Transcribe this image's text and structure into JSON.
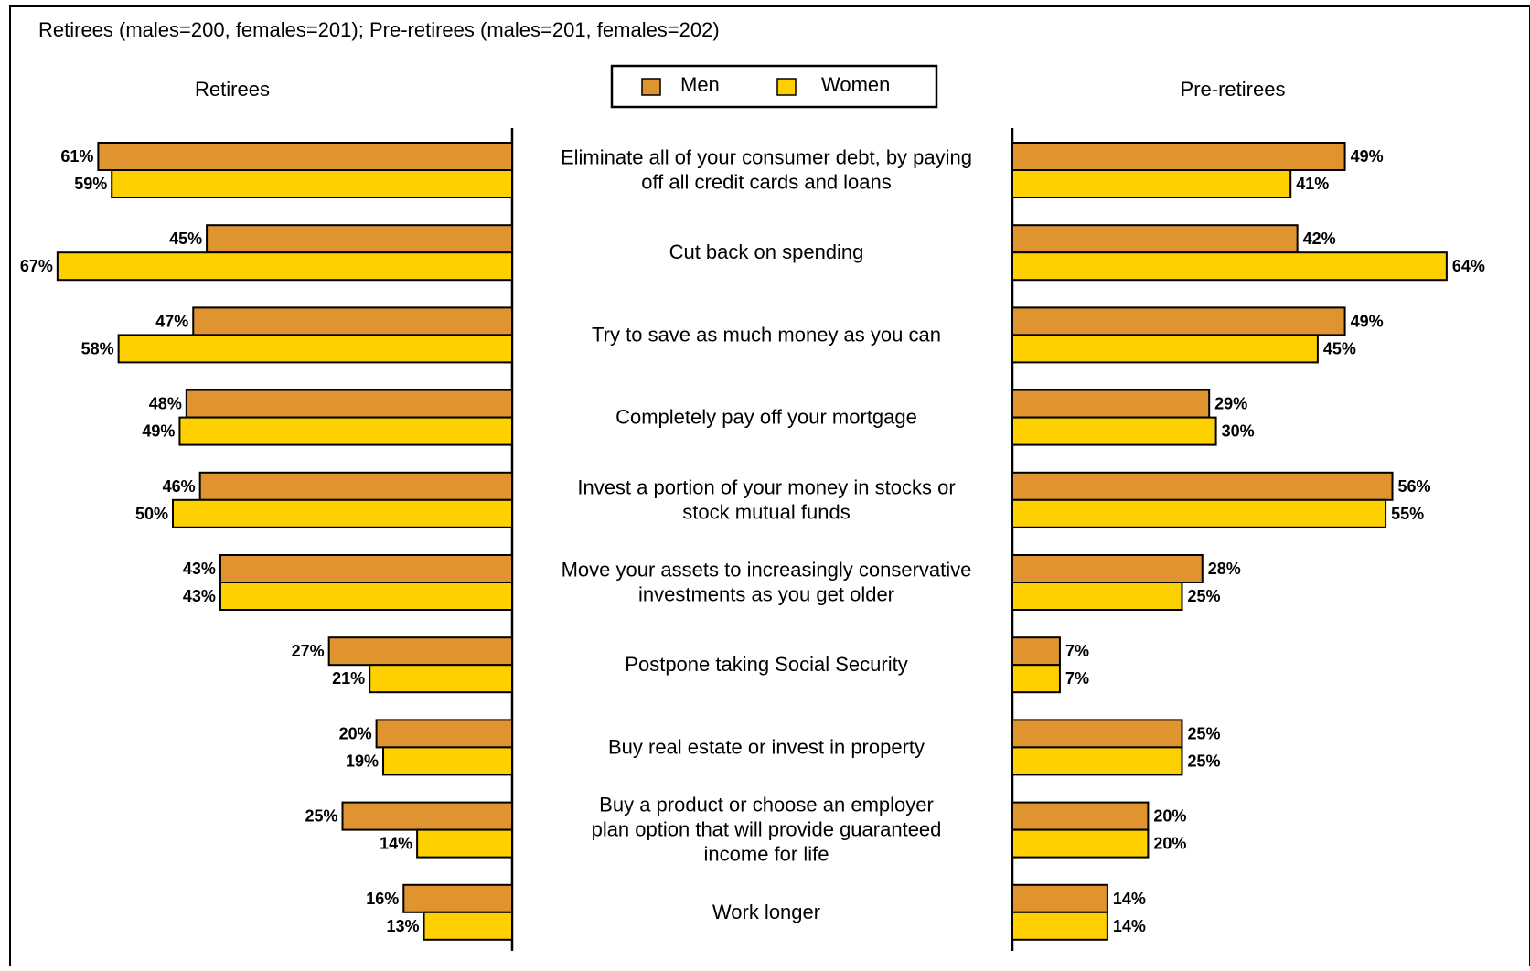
{
  "subtitle": "Retirees (males=200, females=201); Pre-retirees (males=201, females=202)",
  "panels": {
    "left_title": "Retirees",
    "right_title": "Pre-retirees"
  },
  "legend": {
    "men_label": "Men",
    "women_label": "Women"
  },
  "colors": {
    "men": "#E09430",
    "women": "#FFD000",
    "axis": "#000000"
  },
  "chart_data": {
    "type": "bar",
    "orientation": "horizontal",
    "layout": "back-to-back",
    "xlim": [
      0,
      70
    ],
    "grid": false,
    "legend_placement": "top-center",
    "categories": [
      [
        "Eliminate all of your consumer debt, by paying",
        "off all credit cards and loans"
      ],
      [
        "Cut back on spending"
      ],
      [
        "Try to save as much money as you can"
      ],
      [
        "Completely pay off your mortgage"
      ],
      [
        "Invest a portion of your money in stocks or",
        "stock mutual funds"
      ],
      [
        "Move your assets to increasingly conservative",
        "investments as you get older"
      ],
      [
        "Postpone taking Social Security"
      ],
      [
        "Buy real estate or invest in property"
      ],
      [
        "Buy a product or choose an employer",
        "plan option that will provide guaranteed",
        "income for life"
      ],
      [
        "Work longer"
      ]
    ],
    "series": [
      {
        "group": "Retirees",
        "name": "Men",
        "values": [
          61,
          45,
          47,
          48,
          46,
          43,
          27,
          20,
          25,
          16
        ]
      },
      {
        "group": "Retirees",
        "name": "Women",
        "values": [
          59,
          67,
          58,
          49,
          50,
          43,
          21,
          19,
          14,
          13
        ]
      },
      {
        "group": "Pre-retirees",
        "name": "Men",
        "values": [
          49,
          42,
          49,
          29,
          56,
          28,
          7,
          25,
          20,
          14
        ]
      },
      {
        "group": "Pre-retirees",
        "name": "Women",
        "values": [
          41,
          64,
          45,
          30,
          55,
          25,
          7,
          25,
          20,
          14
        ]
      }
    ],
    "value_suffix": "%"
  }
}
